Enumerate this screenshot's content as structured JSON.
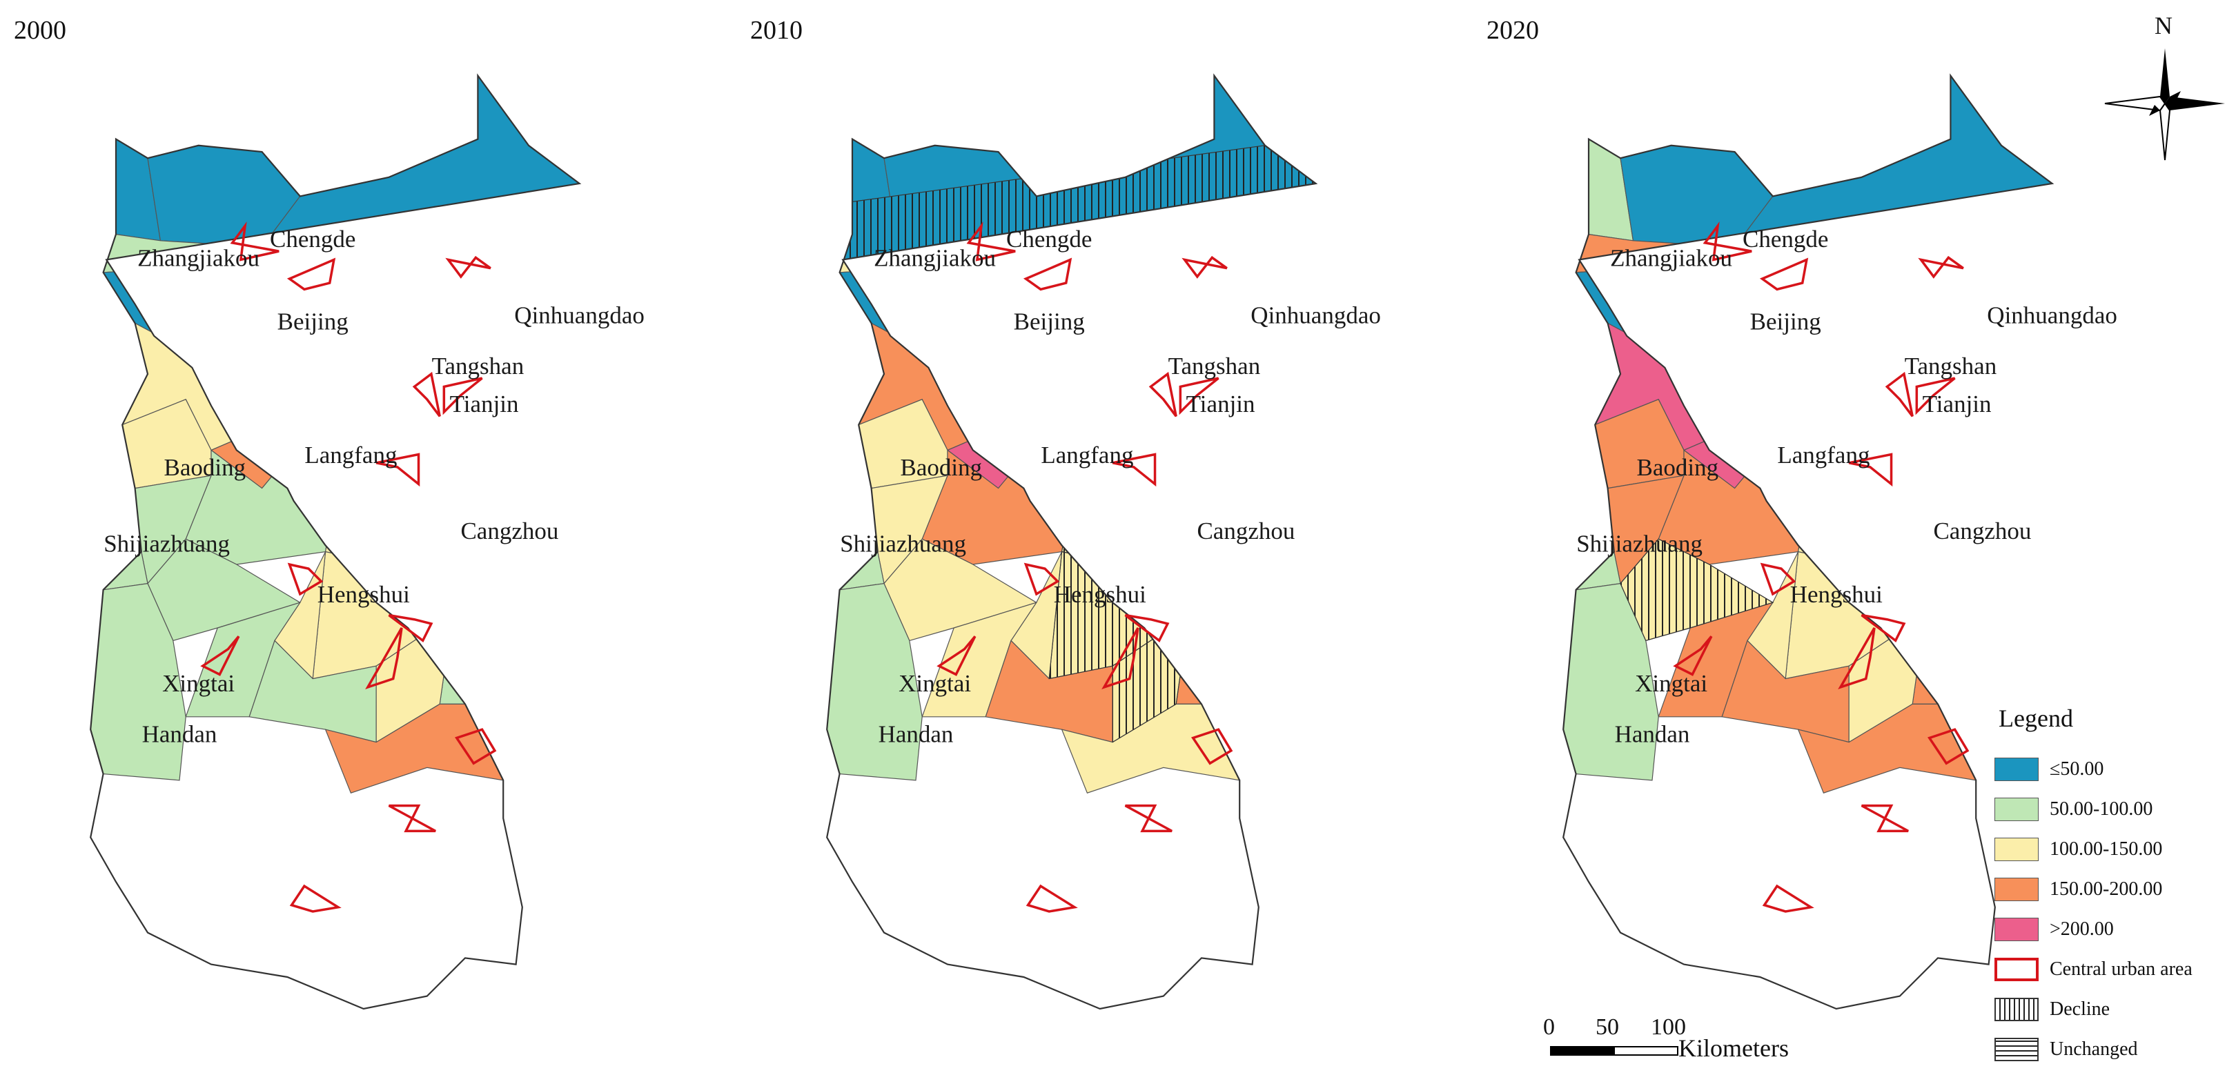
{
  "panels": [
    {
      "year": "2000",
      "fills": [
        "c1",
        "c1",
        "c1",
        "c1",
        "c2",
        "c3",
        "c2",
        "c4",
        "c1",
        "c3",
        "c3",
        "c3",
        "c3",
        "c5",
        "c5",
        "c3",
        "c4",
        "c3",
        "c2",
        "c4",
        "c3",
        "c2",
        "c2",
        "c4",
        "c3",
        "c2",
        "c3",
        "c3",
        "c2",
        "c2",
        "c2",
        "c2",
        "c3",
        "c2",
        "c2",
        "c3",
        "c2",
        "c4"
      ],
      "hatch": []
    },
    {
      "year": "2010",
      "fills": [
        "c1",
        "c1",
        "c1",
        "c1",
        "c3",
        "c4",
        "c2",
        "c3",
        "c1",
        "c3",
        "c4",
        "c4",
        "c4",
        "c5",
        "c5",
        "c4",
        "c5",
        "c3",
        "c3",
        "c5",
        "c4",
        "c3",
        "c3",
        "c4",
        "c3",
        "c4",
        "c3",
        "c3",
        "c4",
        "c3",
        "c2",
        "c3",
        "c3",
        "c3",
        "c4",
        "c3",
        "c2",
        "c3"
      ],
      "hatch": [
        {
          "region": 40,
          "type": "decline"
        },
        {
          "region": 17,
          "type": "decline"
        },
        {
          "region": 26,
          "type": "decline"
        },
        {
          "region": 27,
          "type": "decline"
        },
        {
          "region": 35,
          "type": "decline"
        }
      ]
    },
    {
      "year": "2020",
      "fills": [
        "c2",
        "c1",
        "c1",
        "c1",
        "c4",
        "c4",
        "c2",
        "c4",
        "c1",
        "c5",
        "c5",
        "c4",
        "c4",
        "c5",
        "c5",
        "c5",
        "c5",
        "c4",
        "c4",
        "c5",
        "c4",
        "c3",
        "c4",
        "c4",
        "c4",
        "c4",
        "c3",
        "c3",
        "c4",
        "c4",
        "c2",
        "c4",
        "c3",
        "c4",
        "c4",
        "c3",
        "c2",
        "c4"
      ],
      "hatch": [
        {
          "region": 41,
          "type": "decline"
        },
        {
          "region": 42,
          "type": "decline"
        },
        {
          "region": 43,
          "type": "unchanged"
        },
        {
          "region": 44,
          "type": "unchanged"
        },
        {
          "region": 45,
          "type": "decline"
        },
        {
          "region": 46,
          "type": "decline"
        }
      ]
    }
  ],
  "cities": [
    "Chengde",
    "Zhangjiakou",
    "Qinhuangdao",
    "Beijing",
    "Tangshan",
    "Tianjin",
    "Langfang",
    "Baoding",
    "Cangzhou",
    "Shijiazhuang",
    "Hengshui",
    "Xingtai",
    "Handan"
  ],
  "colors": {
    "c1": "#1b95bf",
    "c2": "#bfe7b5",
    "c3": "#fbeeaa",
    "c4": "#f7905a",
    "c5": "#ec5f8c",
    "urban": "#d7141a"
  },
  "legend": {
    "title": "Legend",
    "items": [
      {
        "label": "≤50.00",
        "swatch": "c1"
      },
      {
        "label": "50.00-100.00",
        "swatch": "c2"
      },
      {
        "label": "100.00-150.00",
        "swatch": "c3"
      },
      {
        "label": "150.00-200.00",
        "swatch": "c4"
      },
      {
        "label": ">200.00",
        "swatch": "c5"
      },
      {
        "label": "Central urban area",
        "swatch": "urban"
      },
      {
        "label": "Decline",
        "swatch": "decline"
      },
      {
        "label": "Unchanged",
        "swatch": "unchanged"
      }
    ]
  },
  "scale": {
    "ticks": [
      "0",
      "50",
      "100"
    ],
    "unit": "Kilometers"
  },
  "north": {
    "label": "N"
  }
}
